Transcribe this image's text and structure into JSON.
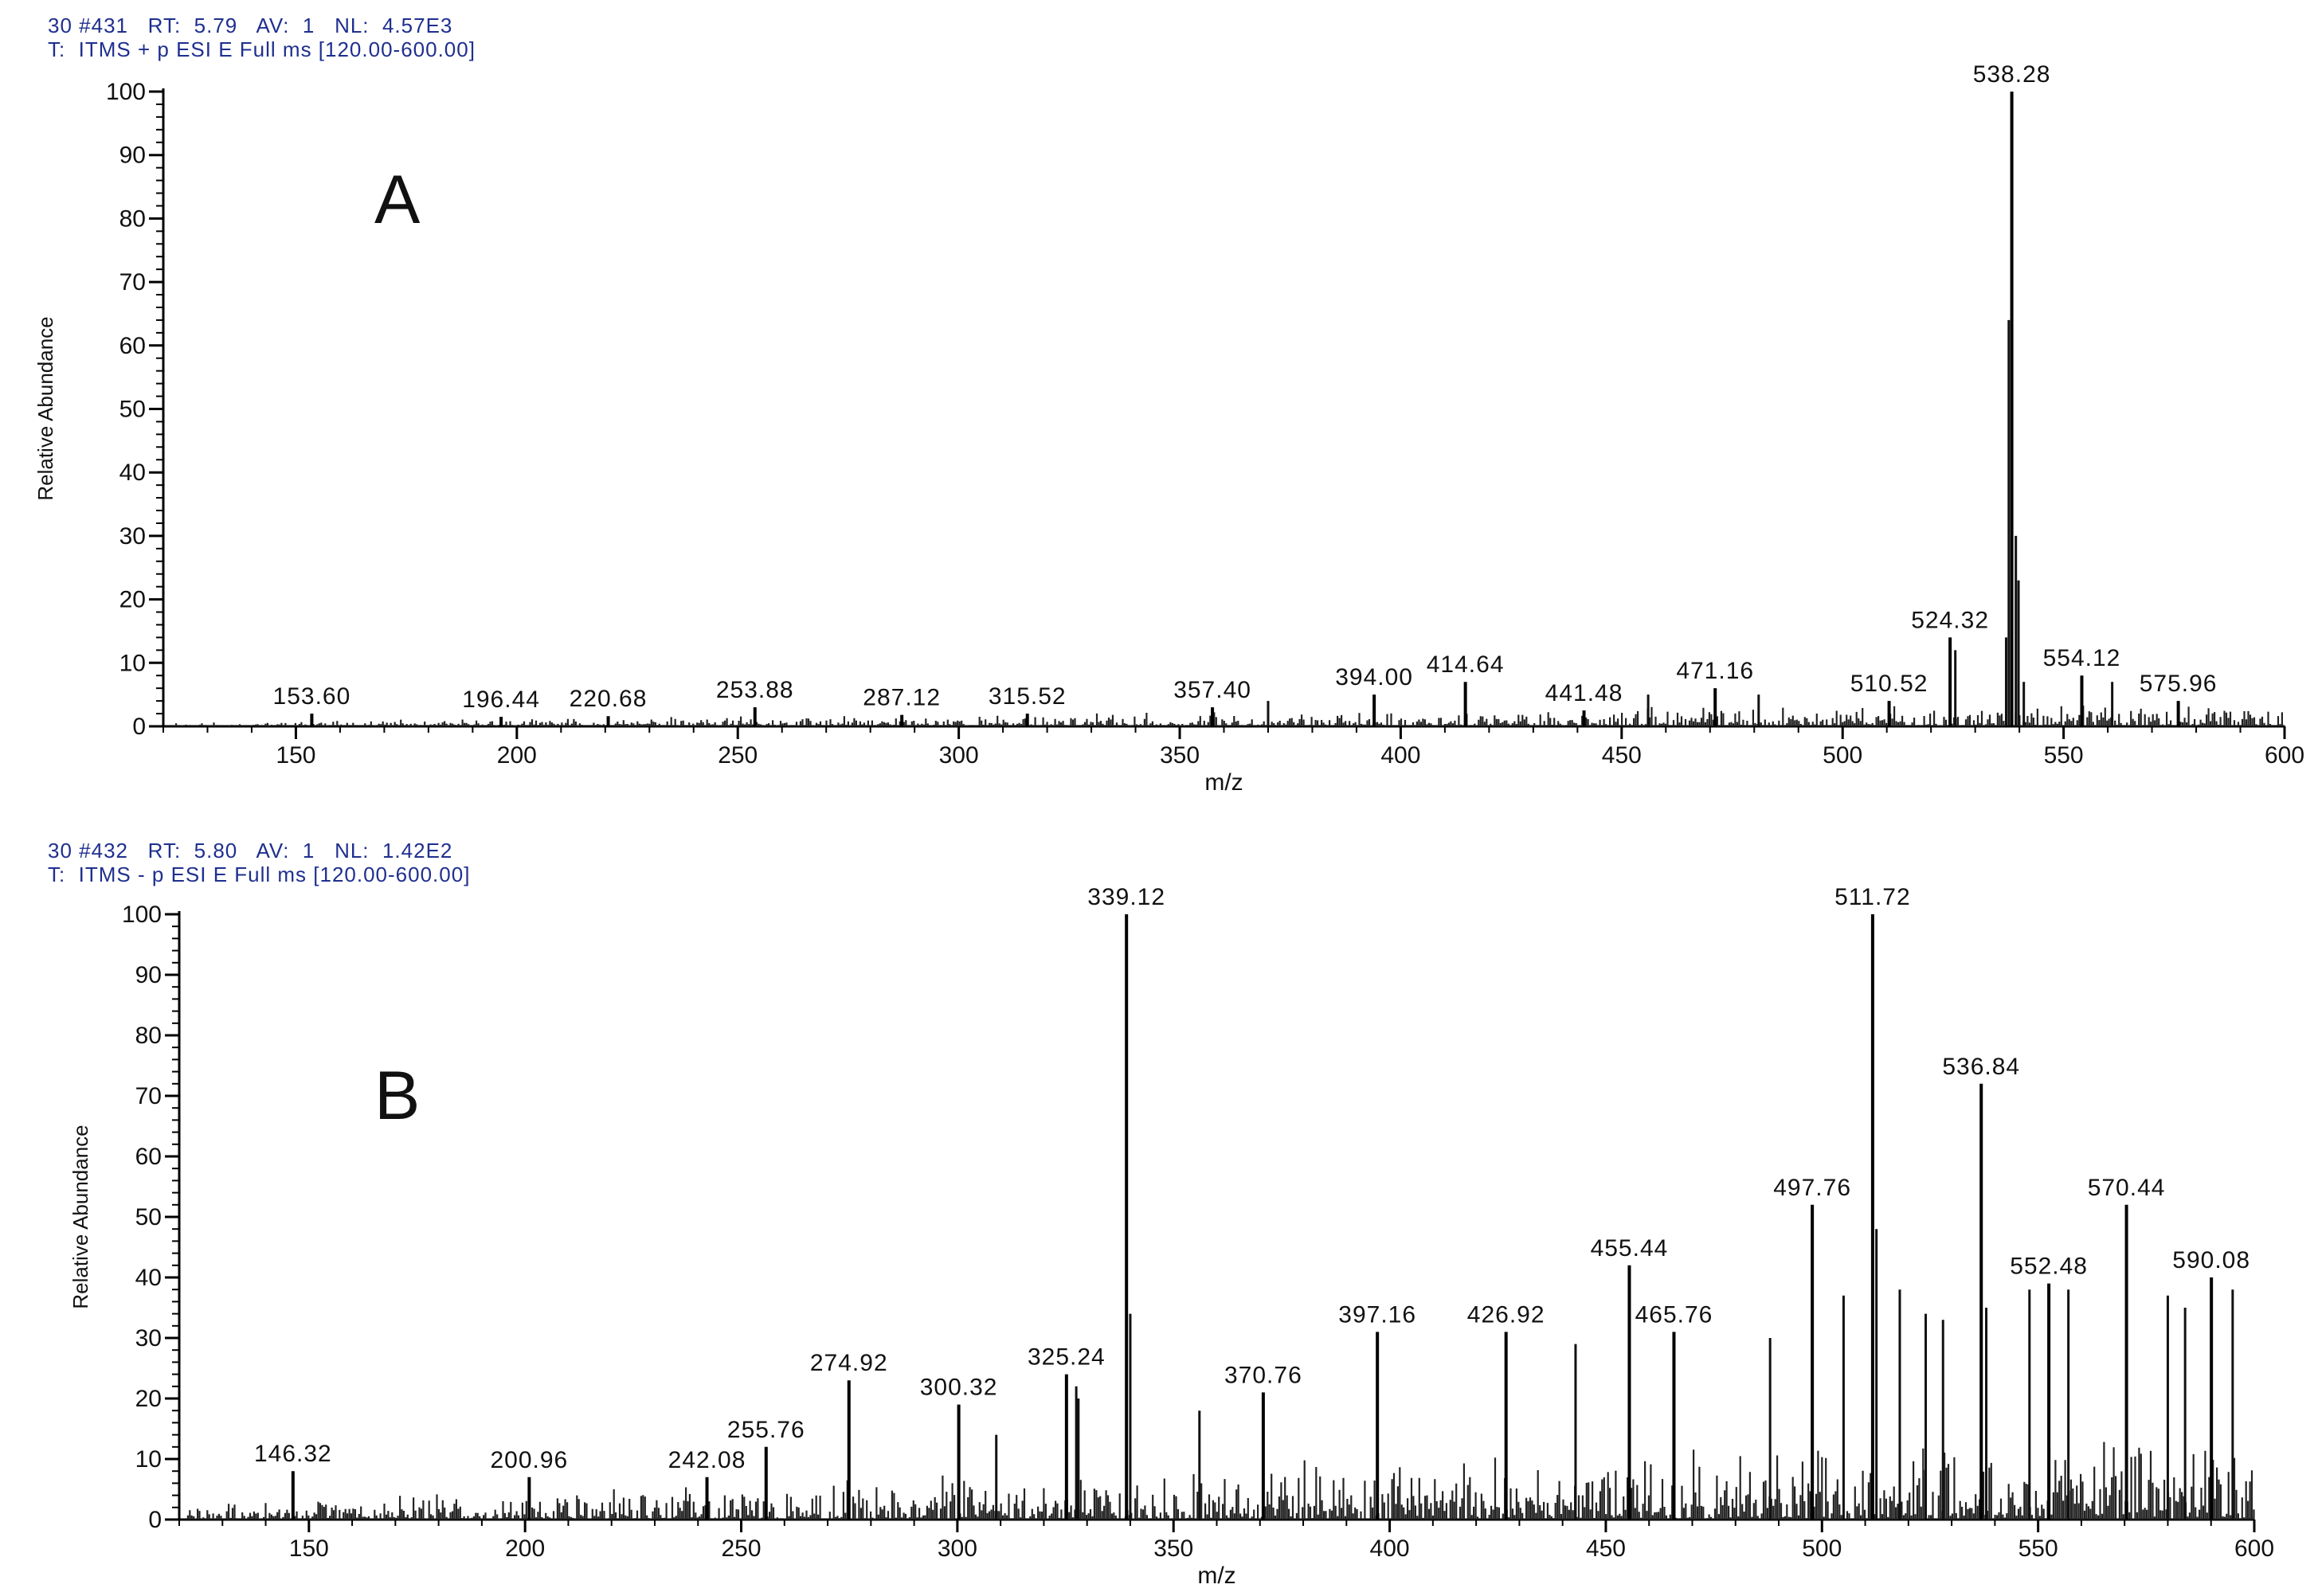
{
  "chart_data": [
    {
      "type": "line",
      "panel_label": "A",
      "header_line1": "30 #431   RT:  5.79   AV:  1   NL:  4.57E3",
      "header_line2": "T:  ITMS + p ESI E Full ms [120.00-600.00]",
      "xlabel": "m/z",
      "ylabel": "Relative Abundance",
      "xlim": [
        120,
        600
      ],
      "ylim": [
        0,
        100
      ],
      "x_ticks": [
        150,
        200,
        250,
        300,
        350,
        400,
        450,
        500,
        550,
        600
      ],
      "y_ticks": [
        0,
        10,
        20,
        30,
        40,
        50,
        60,
        70,
        80,
        90,
        100
      ],
      "peaks": [
        {
          "x": 153.6,
          "y": 2,
          "label": "153.60"
        },
        {
          "x": 196.44,
          "y": 1.5,
          "label": "196.44"
        },
        {
          "x": 220.68,
          "y": 1.6,
          "label": "220.68"
        },
        {
          "x": 253.88,
          "y": 3,
          "label": "253.88"
        },
        {
          "x": 287.12,
          "y": 1.8,
          "label": "287.12"
        },
        {
          "x": 315.52,
          "y": 2,
          "label": "315.52"
        },
        {
          "x": 357.4,
          "y": 3,
          "label": "357.40"
        },
        {
          "x": 394.0,
          "y": 5,
          "label": "394.00"
        },
        {
          "x": 414.64,
          "y": 7,
          "label": "414.64"
        },
        {
          "x": 441.48,
          "y": 2.5,
          "label": "441.48"
        },
        {
          "x": 471.16,
          "y": 6,
          "label": "471.16"
        },
        {
          "x": 510.52,
          "y": 4,
          "label": "510.52"
        },
        {
          "x": 524.32,
          "y": 14,
          "label": "524.32"
        },
        {
          "x": 538.28,
          "y": 100,
          "label": "538.28"
        },
        {
          "x": 554.12,
          "y": 8,
          "label": "554.12"
        },
        {
          "x": 575.96,
          "y": 4,
          "label": "575.96"
        }
      ],
      "extra_peaks": [
        {
          "x": 525.5,
          "y": 12
        },
        {
          "x": 537.6,
          "y": 64
        },
        {
          "x": 539.2,
          "y": 30
        },
        {
          "x": 539.8,
          "y": 23
        },
        {
          "x": 537.0,
          "y": 14
        },
        {
          "x": 541.0,
          "y": 7
        },
        {
          "x": 561.0,
          "y": 7
        },
        {
          "x": 481.0,
          "y": 5
        },
        {
          "x": 456.0,
          "y": 5
        },
        {
          "x": 370.0,
          "y": 4
        }
      ],
      "noise_level": 3
    },
    {
      "type": "line",
      "panel_label": "B",
      "header_line1": "30 #432   RT:  5.80   AV:  1   NL:  1.42E2",
      "header_line2": "T:  ITMS - p ESI E Full ms [120.00-600.00]",
      "xlabel": "m/z",
      "ylabel": "Relative Abundance",
      "xlim": [
        120,
        600
      ],
      "ylim": [
        0,
        100
      ],
      "x_ticks": [
        150,
        200,
        250,
        300,
        350,
        400,
        450,
        500,
        550,
        600
      ],
      "y_ticks": [
        0,
        10,
        20,
        30,
        40,
        50,
        60,
        70,
        80,
        90,
        100
      ],
      "peaks": [
        {
          "x": 146.32,
          "y": 8,
          "label": "146.32"
        },
        {
          "x": 200.96,
          "y": 7,
          "label": "200.96"
        },
        {
          "x": 242.08,
          "y": 7,
          "label": "242.08"
        },
        {
          "x": 255.76,
          "y": 12,
          "label": "255.76"
        },
        {
          "x": 274.92,
          "y": 23,
          "label": "274.92"
        },
        {
          "x": 300.32,
          "y": 19,
          "label": "300.32"
        },
        {
          "x": 325.24,
          "y": 24,
          "label": "325.24"
        },
        {
          "x": 339.12,
          "y": 100,
          "label": "339.12"
        },
        {
          "x": 370.76,
          "y": 21,
          "label": "370.76"
        },
        {
          "x": 397.16,
          "y": 31,
          "label": "397.16"
        },
        {
          "x": 426.92,
          "y": 31,
          "label": "426.92"
        },
        {
          "x": 455.44,
          "y": 42,
          "label": "455.44"
        },
        {
          "x": 465.76,
          "y": 31,
          "label": "465.76"
        },
        {
          "x": 497.76,
          "y": 52,
          "label": "497.76"
        },
        {
          "x": 511.72,
          "y": 100,
          "label": "511.72"
        },
        {
          "x": 536.84,
          "y": 72,
          "label": "536.84"
        },
        {
          "x": 552.48,
          "y": 39,
          "label": "552.48"
        },
        {
          "x": 570.44,
          "y": 52,
          "label": "570.44"
        },
        {
          "x": 590.08,
          "y": 40,
          "label": "590.08"
        }
      ],
      "extra_peaks": [
        {
          "x": 340.0,
          "y": 34
        },
        {
          "x": 512.6,
          "y": 48
        },
        {
          "x": 505.0,
          "y": 37
        },
        {
          "x": 518.0,
          "y": 38
        },
        {
          "x": 524.0,
          "y": 34
        },
        {
          "x": 528.0,
          "y": 33
        },
        {
          "x": 548.0,
          "y": 38
        },
        {
          "x": 557.0,
          "y": 38
        },
        {
          "x": 580.0,
          "y": 37
        },
        {
          "x": 584.0,
          "y": 35
        },
        {
          "x": 595.0,
          "y": 38
        },
        {
          "x": 443.0,
          "y": 29
        },
        {
          "x": 488.0,
          "y": 30
        },
        {
          "x": 538.0,
          "y": 35
        },
        {
          "x": 327.5,
          "y": 22
        },
        {
          "x": 328.0,
          "y": 20
        },
        {
          "x": 309.0,
          "y": 14
        },
        {
          "x": 356.0,
          "y": 18
        }
      ],
      "noise_level": 12
    }
  ]
}
